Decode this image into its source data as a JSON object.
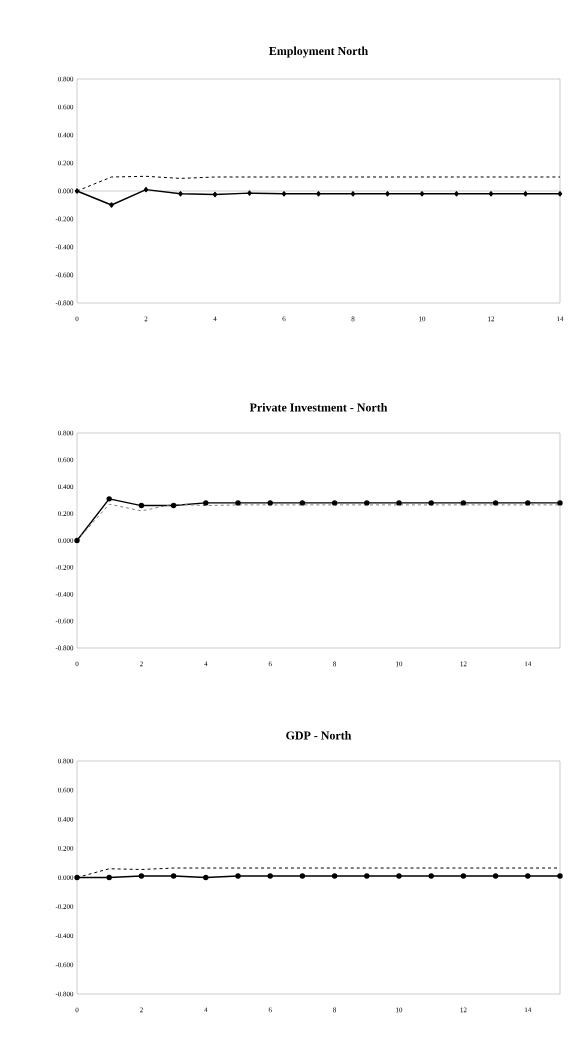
{
  "chart_data": [
    {
      "type": "line",
      "title": "Employment North",
      "x": [
        0,
        1,
        2,
        3,
        4,
        5,
        6,
        7,
        8,
        9,
        10,
        11,
        12,
        13,
        14
      ],
      "series": [
        {
          "color": "#000000",
          "line_style": "solid",
          "marker": "diamond",
          "values": [
            0,
            -0.1,
            0.01,
            -0.02,
            -0.025,
            -0.015,
            -0.02,
            -0.02,
            -0.02,
            -0.02,
            -0.02,
            -0.02,
            -0.02,
            -0.02,
            -0.02
          ]
        },
        {
          "color": "#000000",
          "line_style": "dashed",
          "values": [
            0,
            0.1,
            0.105,
            0.09,
            0.1,
            0.1,
            0.1,
            0.1,
            0.1,
            0.1,
            0.1,
            0.1,
            0.1,
            0.1,
            0.1
          ]
        }
      ],
      "xlim": [
        0,
        14
      ],
      "ylim": [
        -0.8,
        0.8
      ],
      "xticks": [
        0,
        2,
        4,
        6,
        8,
        10,
        12,
        14
      ],
      "yticks": [
        {
          "value": -0.8,
          "label": "-0.800"
        },
        {
          "value": -0.6,
          "label": "-0.600"
        },
        {
          "value": -0.4,
          "label": "-0.400"
        },
        {
          "value": -0.2,
          "label": "-0.200"
        },
        {
          "value": 0,
          "label": "0.000"
        },
        {
          "value": 0.2,
          "label": "0.200"
        },
        {
          "value": 0.4,
          "label": "0.400"
        },
        {
          "value": 0.6,
          "label": "0.600"
        },
        {
          "value": 0.8,
          "label": "0.800"
        }
      ],
      "ref_lines": [
        {
          "axis": "y",
          "value": 0,
          "color": "#808080"
        }
      ]
    },
    {
      "type": "line",
      "title": "Private Investment  - North",
      "x": [
        0,
        1,
        2,
        3,
        4,
        5,
        6,
        7,
        8,
        9,
        10,
        11,
        12,
        13,
        14,
        15
      ],
      "series": [
        {
          "color": "#000000",
          "line_style": "solid",
          "marker": "circle",
          "values": [
            0,
            0.31,
            0.26,
            0.26,
            0.28,
            0.28,
            0.28,
            0.28,
            0.28,
            0.28,
            0.28,
            0.28,
            0.28,
            0.28,
            0.28,
            0.28
          ]
        },
        {
          "color": "#808080",
          "line_style": "dashed",
          "values": [
            0,
            0.27,
            0.22,
            0.27,
            0.26,
            0.265,
            0.265,
            0.265,
            0.265,
            0.265,
            0.265,
            0.265,
            0.265,
            0.265,
            0.265,
            0.265
          ]
        }
      ],
      "xlim": [
        0,
        15
      ],
      "ylim": [
        -0.8,
        0.8
      ],
      "xticks": [
        0,
        2,
        4,
        6,
        8,
        10,
        12,
        14
      ],
      "yticks": [
        {
          "value": -0.8,
          "label": "-0.800"
        },
        {
          "value": -0.6,
          "label": "-0.600"
        },
        {
          "value": -0.4,
          "label": "-0.400"
        },
        {
          "value": -0.2,
          "label": "-0.200"
        },
        {
          "value": 0,
          "label": "0.000"
        },
        {
          "value": 0.2,
          "label": "0.200"
        },
        {
          "value": 0.4,
          "label": "0.400"
        },
        {
          "value": 0.6,
          "label": "0.600"
        },
        {
          "value": 0.8,
          "label": "0.800"
        }
      ]
    },
    {
      "type": "line",
      "title": "GDP - North",
      "x": [
        0,
        1,
        2,
        3,
        4,
        5,
        6,
        7,
        8,
        9,
        10,
        11,
        12,
        13,
        14,
        15
      ],
      "series": [
        {
          "color": "#000000",
          "line_style": "solid",
          "marker": "circle",
          "values": [
            0,
            0,
            0.01,
            0.01,
            0,
            0.01,
            0.01,
            0.01,
            0.01,
            0.01,
            0.01,
            0.01,
            0.01,
            0.01,
            0.01,
            0.01
          ]
        },
        {
          "color": "#000000",
          "line_style": "dashed",
          "values": [
            0,
            0.06,
            0.055,
            0.065,
            0.065,
            0.065,
            0.065,
            0.065,
            0.065,
            0.065,
            0.065,
            0.065,
            0.065,
            0.065,
            0.065,
            0.065
          ]
        }
      ],
      "xlim": [
        0,
        15
      ],
      "ylim": [
        -0.8,
        0.8
      ],
      "xticks": [
        0,
        2,
        4,
        6,
        8,
        10,
        12,
        14
      ],
      "yticks": [
        {
          "value": -0.8,
          "label": "-0.800"
        },
        {
          "value": -0.6,
          "label": "-0.600"
        },
        {
          "value": -0.4,
          "label": "-0.400"
        },
        {
          "value": -0.2,
          "label": "-0.200"
        },
        {
          "value": 0,
          "label": "0.000"
        },
        {
          "value": 0.2,
          "label": "0.200"
        },
        {
          "value": 0.4,
          "label": "0.400"
        },
        {
          "value": 0.6,
          "label": "0.600"
        },
        {
          "value": 0.8,
          "label": "0.800"
        }
      ]
    }
  ]
}
